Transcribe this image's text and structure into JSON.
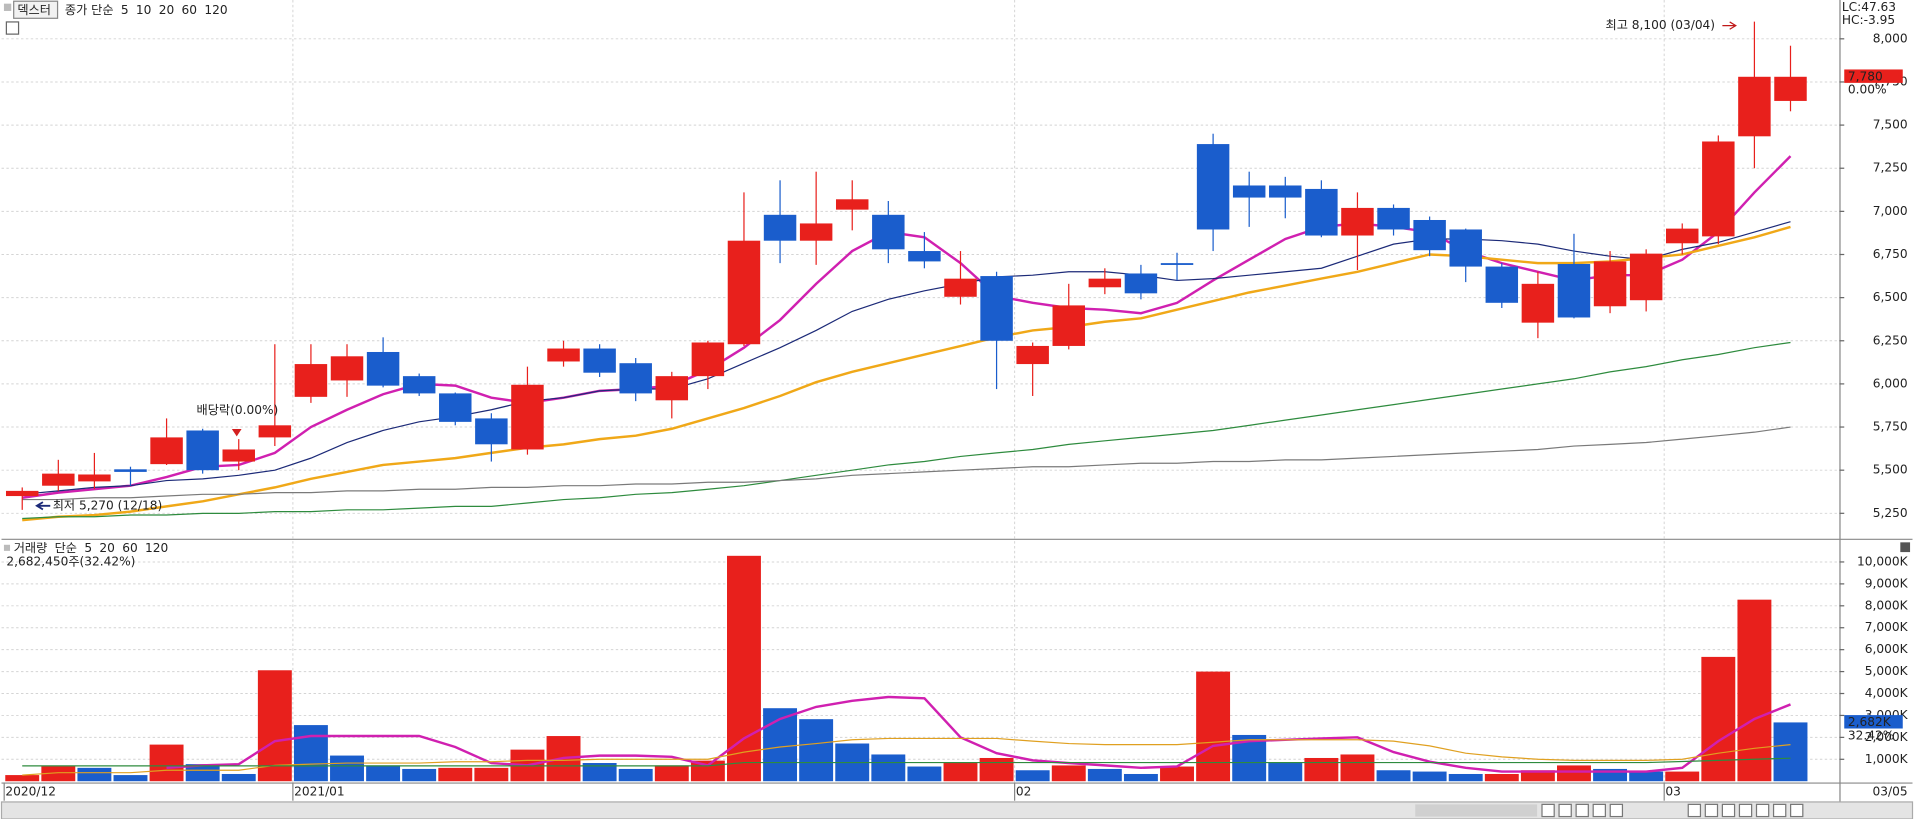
{
  "chart_data": [
    {
      "type": "candlestick",
      "title": "덱스터",
      "indicator_label": "종가 단순",
      "categories": [
        "2020/12",
        null,
        null,
        null,
        null,
        null,
        null,
        null,
        "2021/01",
        null,
        null,
        null,
        null,
        null,
        null,
        null,
        null,
        null,
        null,
        null,
        null,
        null,
        null,
        null,
        null,
        null,
        null,
        null,
        "02",
        null,
        null,
        null,
        null,
        null,
        null,
        null,
        null,
        null,
        null,
        null,
        null,
        null,
        null,
        null,
        null,
        null,
        "03",
        null,
        null,
        null
      ],
      "open": [
        5350,
        5410,
        5435,
        5505,
        5535,
        5730,
        5550,
        5690,
        5925,
        6020,
        6185,
        6045,
        5945,
        5800,
        5620,
        6130,
        6205,
        6120,
        5905,
        6045,
        6230,
        6980,
        6830,
        7010,
        6980,
        6770,
        6505,
        6625,
        6115,
        6220,
        6560,
        6640,
        6700,
        7390,
        7150,
        7150,
        7130,
        6860,
        7020,
        6950,
        6895,
        6680,
        6355,
        6695,
        6450,
        6485,
        6815,
        6855,
        7435,
        7640
      ],
      "high": [
        5400,
        5560,
        5600,
        5520,
        5800,
        5740,
        5680,
        6230,
        6230,
        6230,
        6270,
        6060,
        5950,
        5830,
        6100,
        6250,
        6230,
        6150,
        6070,
        6250,
        7110,
        7180,
        7230,
        7180,
        7060,
        6880,
        6770,
        6650,
        6240,
        6580,
        6670,
        6690,
        6760,
        7450,
        7230,
        7200,
        7180,
        7110,
        7040,
        6970,
        6900,
        6700,
        6650,
        6870,
        6770,
        6780,
        6930,
        7440,
        8100,
        7960
      ],
      "low": [
        5270,
        5380,
        5390,
        5410,
        5530,
        5480,
        5500,
        5640,
        5890,
        5925,
        5980,
        5930,
        5760,
        5550,
        5590,
        6100,
        6040,
        5900,
        5800,
        5970,
        6220,
        6700,
        6690,
        6890,
        6700,
        6670,
        6460,
        5970,
        5930,
        6200,
        6520,
        6490,
        6600,
        6770,
        6910,
        6960,
        6850,
        6660,
        6860,
        6740,
        6590,
        6440,
        6265,
        6380,
        6410,
        6420,
        6750,
        6810,
        7250,
        7580
      ],
      "close": [
        5380,
        5480,
        5475,
        5490,
        5690,
        5500,
        5620,
        5760,
        6115,
        6160,
        5990,
        5945,
        5780,
        5650,
        5995,
        6205,
        6065,
        5945,
        6045,
        6240,
        6830,
        6830,
        6930,
        7070,
        6780,
        6710,
        6610,
        6250,
        6220,
        6455,
        6610,
        6525,
        6695,
        6895,
        7080,
        7080,
        6860,
        7020,
        6895,
        6775,
        6680,
        6470,
        6580,
        6385,
        6710,
        6755,
        6900,
        7405,
        7780,
        7780
      ],
      "up_color": "#e8201c",
      "down_color": "#1a5dcc",
      "series": [
        {
          "name": "5",
          "color": "#d020b0",
          "values": [
            5340,
            5370,
            5390,
            5410,
            5460,
            5520,
            5530,
            5600,
            5750,
            5850,
            5940,
            6000,
            5990,
            5920,
            5890,
            5920,
            5960,
            5970,
            5990,
            6080,
            6210,
            6370,
            6580,
            6770,
            6880,
            6850,
            6700,
            6510,
            6470,
            6440,
            6430,
            6410,
            6470,
            6600,
            6720,
            6840,
            6910,
            6930,
            6910,
            6880,
            6770,
            6700,
            6650,
            6600,
            6630,
            6630,
            6720,
            6880,
            7110,
            7320
          ]
        },
        {
          "name": "10",
          "color": "#1c2a78",
          "values": [
            5360,
            5380,
            5400,
            5410,
            5440,
            5450,
            5470,
            5500,
            5570,
            5660,
            5730,
            5780,
            5810,
            5850,
            5900,
            5920,
            5960,
            5970,
            5970,
            6030,
            6120,
            6210,
            6310,
            6420,
            6490,
            6540,
            6580,
            6620,
            6630,
            6650,
            6650,
            6630,
            6600,
            6610,
            6630,
            6650,
            6670,
            6740,
            6810,
            6840,
            6840,
            6830,
            6810,
            6770,
            6740,
            6720,
            6780,
            6820,
            6880,
            6940
          ]
        },
        {
          "name": "20",
          "color": "#f0a818",
          "values": [
            5210,
            5230,
            5240,
            5260,
            5290,
            5320,
            5360,
            5400,
            5450,
            5490,
            5530,
            5550,
            5570,
            5600,
            5630,
            5650,
            5680,
            5700,
            5740,
            5800,
            5860,
            5930,
            6010,
            6070,
            6120,
            6170,
            6220,
            6270,
            6310,
            6330,
            6360,
            6380,
            6430,
            6480,
            6530,
            6570,
            6610,
            6650,
            6700,
            6750,
            6740,
            6720,
            6700,
            6700,
            6710,
            6730,
            6750,
            6800,
            6850,
            6910
          ]
        },
        {
          "name": "60",
          "color": "#2e8b3e",
          "values": [
            5220,
            5230,
            5230,
            5240,
            5240,
            5250,
            5250,
            5260,
            5260,
            5270,
            5270,
            5280,
            5290,
            5290,
            5310,
            5330,
            5340,
            5360,
            5370,
            5390,
            5410,
            5440,
            5470,
            5500,
            5530,
            5550,
            5580,
            5600,
            5620,
            5650,
            5670,
            5690,
            5710,
            5730,
            5760,
            5790,
            5820,
            5850,
            5880,
            5910,
            5940,
            5970,
            6000,
            6030,
            6070,
            6100,
            6140,
            6170,
            6210,
            6240
          ]
        },
        {
          "name": "120",
          "color": "#7a7a7a",
          "values": [
            5330,
            5330,
            5340,
            5340,
            5350,
            5360,
            5360,
            5370,
            5370,
            5380,
            5380,
            5390,
            5390,
            5400,
            5400,
            5410,
            5410,
            5420,
            5420,
            5430,
            5430,
            5440,
            5450,
            5470,
            5480,
            5490,
            5500,
            5510,
            5520,
            5520,
            5530,
            5540,
            5540,
            5550,
            5550,
            5560,
            5560,
            5570,
            5580,
            5590,
            5600,
            5610,
            5620,
            5640,
            5650,
            5660,
            5680,
            5700,
            5720,
            5750
          ]
        }
      ],
      "ylim": [
        5110,
        8225
      ],
      "yticks": [
        {
          "value": 5250,
          "label": "5,250"
        },
        {
          "value": 5500,
          "label": "5,500"
        },
        {
          "value": 5750,
          "label": "5,750"
        },
        {
          "value": 6000,
          "label": "6,000"
        },
        {
          "value": 6250,
          "label": "6,250"
        },
        {
          "value": 6500,
          "label": "6,500"
        },
        {
          "value": 6750,
          "label": "6,750"
        },
        {
          "value": 7000,
          "label": "7,000"
        },
        {
          "value": 7250,
          "label": "7,250"
        },
        {
          "value": 7500,
          "label": "7,500"
        },
        {
          "value": 7750,
          "label": "7,750"
        },
        {
          "value": 8000,
          "label": "8,000"
        }
      ],
      "grid": true,
      "last_price": {
        "value": 7780,
        "label": "7,780"
      },
      "change_label": "0.00%",
      "lc_label": "LC:47.63",
      "hc_label": "HC:-3.95",
      "high_annotation": "최고 8,100 (03/04)",
      "low_annotation": "최저 5,270 (12/18)",
      "event_annotation": "배당락(0.00%)"
    },
    {
      "type": "bar",
      "title": "거래량",
      "indicator_label": "단순",
      "values": [
        280,
        670,
        610,
        280,
        1670,
        780,
        330,
        5060,
        2560,
        1170,
        720,
        560,
        610,
        610,
        1440,
        2060,
        830,
        560,
        720,
        940,
        10280,
        3330,
        2830,
        1720,
        1220,
        670,
        830,
        1060,
        500,
        720,
        560,
        330,
        670,
        5000,
        2110,
        830,
        1060,
        1220,
        500,
        440,
        330,
        330,
        500,
        720,
        560,
        440,
        440,
        5670,
        8280,
        2682
      ],
      "up_color": "#e8201c",
      "down_color": "#1a5dcc",
      "series": [
        {
          "name": "5",
          "color": "#d020b0",
          "values": [
            null,
            null,
            null,
            null,
            610,
            720,
            780,
            1830,
            2060,
            2060,
            2060,
            2060,
            1560,
            830,
            720,
            1060,
            1170,
            1170,
            1110,
            720,
            1950,
            2840,
            3390,
            3670,
            3840,
            3780,
            2000,
            1280,
            950,
            830,
            720,
            610,
            670,
            1610,
            1830,
            1890,
            1950,
            2000,
            1330,
            890,
            610,
            440,
            440,
            440,
            440,
            440,
            610,
            1830,
            2840,
            3500
          ]
        },
        {
          "name": "20",
          "color": "#e0a020",
          "values": [
            280,
            390,
            390,
            390,
            500,
            500,
            500,
            720,
            780,
            830,
            830,
            830,
            890,
            890,
            950,
            950,
            1000,
            1000,
            1000,
            1000,
            1330,
            1560,
            1720,
            1890,
            1950,
            1950,
            1950,
            1950,
            1830,
            1720,
            1670,
            1670,
            1670,
            1780,
            1890,
            1890,
            1890,
            1890,
            1830,
            1610,
            1280,
            1110,
            1000,
            950,
            950,
            950,
            1000,
            1280,
            1500,
            1670
          ]
        },
        {
          "name": "60",
          "color": "#2e8b3e",
          "values": [
            700,
            700,
            700,
            700,
            700,
            700,
            700,
            700,
            700,
            700,
            700,
            700,
            700,
            700,
            700,
            700,
            700,
            700,
            700,
            700,
            850,
            850,
            850,
            850,
            850,
            850,
            850,
            850,
            850,
            850,
            850,
            850,
            850,
            850,
            850,
            850,
            850,
            850,
            850,
            850,
            850,
            850,
            850,
            850,
            850,
            850,
            900,
            950,
            1000,
            1050
          ]
        }
      ],
      "legend_extra": "120",
      "ylim": [
        0,
        10950
      ],
      "yticks": [
        {
          "value": 1000,
          "label": "1,000K"
        },
        {
          "value": 2000,
          "label": "2,000K"
        },
        {
          "value": 3000,
          "label": "3,000K"
        },
        {
          "value": 4000,
          "label": "4,000K"
        },
        {
          "value": 5000,
          "label": "5,000K"
        },
        {
          "value": 6000,
          "label": "6,000K"
        },
        {
          "value": 7000,
          "label": "7,000K"
        },
        {
          "value": 8000,
          "label": "8,000K"
        },
        {
          "value": 9000,
          "label": "9,000K"
        },
        {
          "value": 10000,
          "label": "10,000K"
        }
      ],
      "grid": true,
      "last_volume": {
        "value": 2682,
        "label": "2,682K"
      },
      "ratio_label": "32.42%",
      "volume_info": "2,682,450주(32.42%)",
      "cursor_date": "03/05"
    }
  ]
}
